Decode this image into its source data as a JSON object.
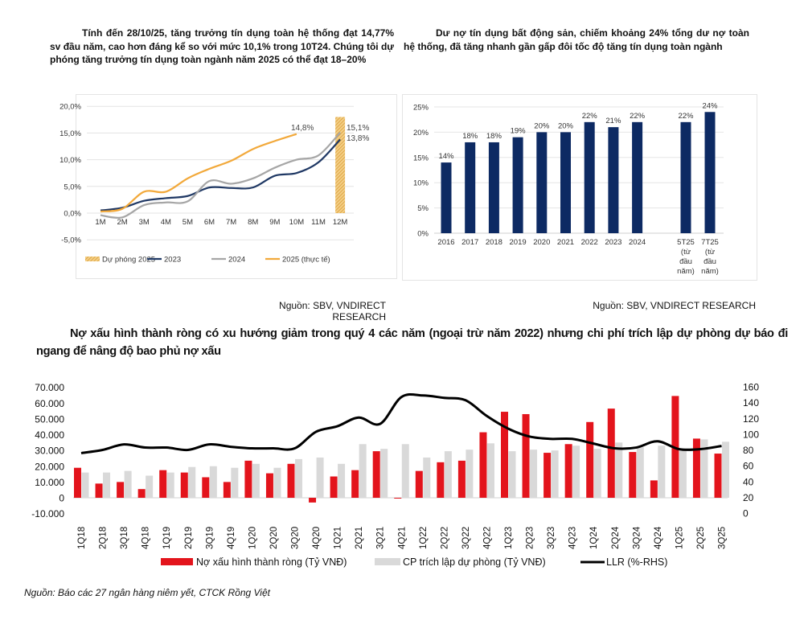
{
  "panel1": {
    "title": "Tính đến 28/10/25, tăng trưởng tín dụng toàn hệ thống đạt 14,77% sv đầu năm, cao hơn đáng kể so với mức 10,1% trong 10T24. Chúng tôi dự phóng tăng trưởng tín dụng toàn ngành năm 2025 có thể đạt 18–20%",
    "source": "Nguồn: SBV, VNDIRECT RESEARCH"
  },
  "panel2": {
    "title": "Dư nợ tín dụng bất động sản, chiếm khoảng 24% tổng dư nợ toàn hệ thống, đã tăng nhanh gần gấp đôi tốc độ tăng tín dụng toàn ngành",
    "source": "Nguồn: SBV, VNDIRECT RESEARCH"
  },
  "panel3": {
    "title": "Nợ xấu hình thành ròng có xu hướng giảm trong quý 4 các năm (ngoại trừ năm 2022) nhưng chi phí trích lập dự phòng dự báo đi ngang để nâng độ bao phủ nợ xấu",
    "source": "Nguồn: Báo các 27 ngân hàng niêm yết, CTCK Rồng Việt"
  },
  "chart_data": [
    {
      "type": "line",
      "categories": [
        "1M",
        "2M",
        "3M",
        "4M",
        "5M",
        "6M",
        "7M",
        "8M",
        "9M",
        "10M",
        "11M",
        "12M"
      ],
      "ylim": [
        -5,
        20
      ],
      "yticks": [
        "20,0%",
        "15,0%",
        "10,0%",
        "5,0%",
        "0,0%",
        "-5,0%"
      ],
      "grid": true,
      "legend_position": "bottom",
      "series": [
        {
          "name": "Dự phóng 2025",
          "kind": "hatched-bar",
          "color": "#e8b04a",
          "values": [
            null,
            null,
            null,
            null,
            null,
            null,
            null,
            null,
            null,
            null,
            null,
            18
          ]
        },
        {
          "name": "2023",
          "color": "#1f3864",
          "values": [
            0.5,
            1.0,
            2.3,
            2.8,
            3.2,
            4.8,
            4.7,
            4.8,
            7.0,
            7.5,
            9.5,
            13.8
          ],
          "end_label": "13,8%"
        },
        {
          "name": "2024",
          "color": "#a6a6a6",
          "values": [
            -0.4,
            -0.8,
            1.5,
            2.0,
            2.2,
            6.0,
            5.5,
            6.5,
            8.5,
            10.0,
            10.8,
            15.1
          ],
          "end_label": "15,1%"
        },
        {
          "name": "2025 (thực tế)",
          "color": "#f2a93b",
          "values": [
            0.3,
            0.8,
            4.0,
            4.0,
            6.5,
            8.3,
            9.8,
            12.0,
            13.5,
            14.8,
            null,
            null
          ],
          "end_label": "14,8%"
        }
      ]
    },
    {
      "type": "bar",
      "categories": [
        [
          "2016"
        ],
        [
          "2017"
        ],
        [
          "2018"
        ],
        [
          "2019"
        ],
        [
          "2020"
        ],
        [
          "2021"
        ],
        [
          "2022"
        ],
        [
          "2023"
        ],
        [
          "2024"
        ],
        [
          "5T25",
          "(từ",
          "đầu",
          "năm)"
        ],
        [
          "7T25",
          "(từ",
          "đầu",
          "năm)"
        ]
      ],
      "values": [
        14,
        18,
        18,
        19,
        20,
        20,
        22,
        21,
        22,
        22,
        24
      ],
      "data_labels": [
        "14%",
        "18%",
        "18%",
        "19%",
        "20%",
        "20%",
        "22%",
        "21%",
        "22%",
        "22%",
        "24%"
      ],
      "ylim": [
        0,
        25
      ],
      "yticks": [
        "25%",
        "20%",
        "15%",
        "10%",
        "5%",
        "0%"
      ],
      "grid": true,
      "color": "#0d2a63"
    },
    {
      "type": "bar",
      "categories": [
        "1Q18",
        "2Q18",
        "3Q18",
        "4Q18",
        "1Q19",
        "2Q19",
        "3Q19",
        "4Q19",
        "1Q20",
        "2Q20",
        "3Q20",
        "4Q20",
        "1Q21",
        "2Q21",
        "3Q21",
        "4Q21",
        "1Q22",
        "2Q22",
        "3Q22",
        "4Q22",
        "1Q23",
        "2Q23",
        "3Q23",
        "4Q23",
        "1Q24",
        "2Q24",
        "3Q24",
        "4Q24",
        "1Q25",
        "2Q25",
        "3Q25"
      ],
      "ylim": [
        -10000,
        70000
      ],
      "y2lim": [
        0,
        160
      ],
      "yticks": [
        "70.000",
        "60.000",
        "50.000",
        "40.000",
        "30.000",
        "20.000",
        "10.000",
        "0",
        "-10.000"
      ],
      "y2ticks": [
        "160",
        "140",
        "120",
        "100",
        "80",
        "60",
        "40",
        "20",
        "0"
      ],
      "legend_position": "bottom",
      "series": [
        {
          "name": "Nợ xấu hình thành ròng (Tỷ VNĐ)",
          "kind": "bar",
          "axis": "left",
          "color": "#e3141c",
          "values": [
            19000,
            9000,
            10000,
            5500,
            17500,
            16000,
            13000,
            10000,
            23500,
            15500,
            21500,
            -3000,
            13500,
            17500,
            29500,
            -500,
            17000,
            22500,
            23500,
            41500,
            54500,
            53000,
            28500,
            34000,
            48000,
            56500,
            29000,
            11000,
            64500,
            37500,
            28000
          ]
        },
        {
          "name": "CP trích lập dự phòng (Tỷ VNĐ)",
          "kind": "bar",
          "axis": "left",
          "color": "#d9d9d9",
          "values": [
            16000,
            16000,
            17000,
            14000,
            16000,
            19500,
            20000,
            19000,
            21500,
            19000,
            24500,
            25500,
            21500,
            34000,
            31000,
            34000,
            25500,
            29500,
            30500,
            34500,
            29500,
            30500,
            30000,
            33000,
            31000,
            35000,
            32000,
            33000,
            31000,
            37000,
            35500
          ]
        },
        {
          "name": "LLR (%-RHS)",
          "kind": "line",
          "axis": "right",
          "color": "#000000",
          "values": [
            76,
            80,
            87,
            83,
            83,
            80,
            87,
            84,
            82,
            82,
            82,
            103,
            110,
            121,
            113,
            147,
            149,
            146,
            143,
            123,
            107,
            97,
            94,
            94,
            88,
            82,
            83,
            91,
            81,
            81,
            85
          ]
        }
      ]
    }
  ]
}
